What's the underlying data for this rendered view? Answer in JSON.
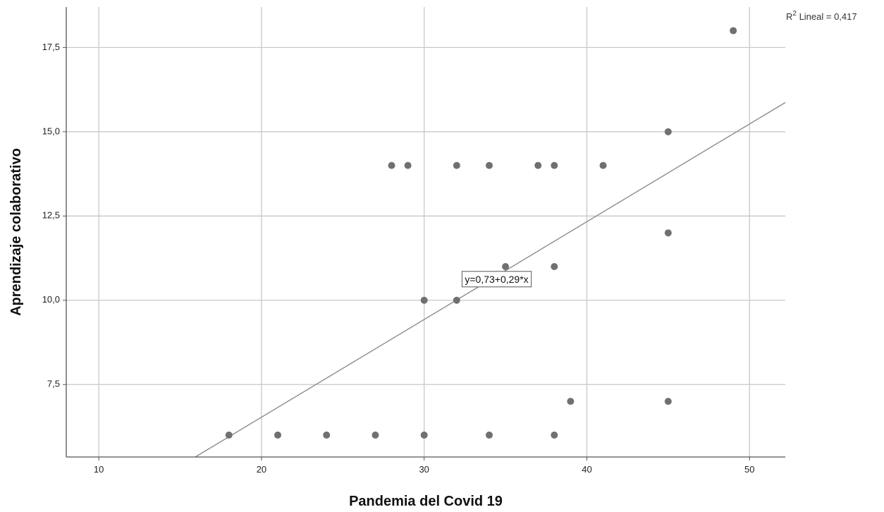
{
  "chart_data": {
    "type": "scatter",
    "title": "",
    "xlabel": "Pandemia del Covid 19",
    "ylabel": "Aprendizaje colaborativo",
    "xlim": [
      8,
      52.2
    ],
    "ylim": [
      5.35,
      18.7
    ],
    "x_ticks": [
      10,
      20,
      30,
      40,
      50
    ],
    "x_tick_labels": [
      "10",
      "20",
      "30",
      "40",
      "50"
    ],
    "y_ticks": [
      7.5,
      10.0,
      12.5,
      15.0,
      17.5
    ],
    "y_tick_labels": [
      "7,5",
      "10,0",
      "12,5",
      "15,0",
      "17,5"
    ],
    "grid": true,
    "points": [
      {
        "x": 18,
        "y": 6
      },
      {
        "x": 21,
        "y": 6
      },
      {
        "x": 24,
        "y": 6
      },
      {
        "x": 27,
        "y": 6
      },
      {
        "x": 30,
        "y": 6
      },
      {
        "x": 34,
        "y": 6
      },
      {
        "x": 38,
        "y": 6
      },
      {
        "x": 39,
        "y": 7
      },
      {
        "x": 45,
        "y": 7
      },
      {
        "x": 30,
        "y": 10
      },
      {
        "x": 32,
        "y": 10
      },
      {
        "x": 35,
        "y": 11
      },
      {
        "x": 38,
        "y": 11
      },
      {
        "x": 45,
        "y": 12
      },
      {
        "x": 28,
        "y": 14
      },
      {
        "x": 29,
        "y": 14
      },
      {
        "x": 32,
        "y": 14
      },
      {
        "x": 34,
        "y": 14
      },
      {
        "x": 37,
        "y": 14
      },
      {
        "x": 38,
        "y": 14
      },
      {
        "x": 41,
        "y": 14
      },
      {
        "x": 45,
        "y": 15
      },
      {
        "x": 49,
        "y": 18
      }
    ],
    "fit_line": {
      "intercept": 0.73,
      "slope": 0.29,
      "equation_label": "y=0,73+0,29*x",
      "label_anchor": {
        "x": 32.5,
        "y": 10.6
      }
    },
    "r2_label": {
      "prefix": "R",
      "superscript": "2",
      "text": " Lineal = 0,417"
    },
    "colors": {
      "points": "#707070",
      "fit_line": "#8c8c8c",
      "grid": "#c8c8c8",
      "axis": "#555555"
    }
  }
}
